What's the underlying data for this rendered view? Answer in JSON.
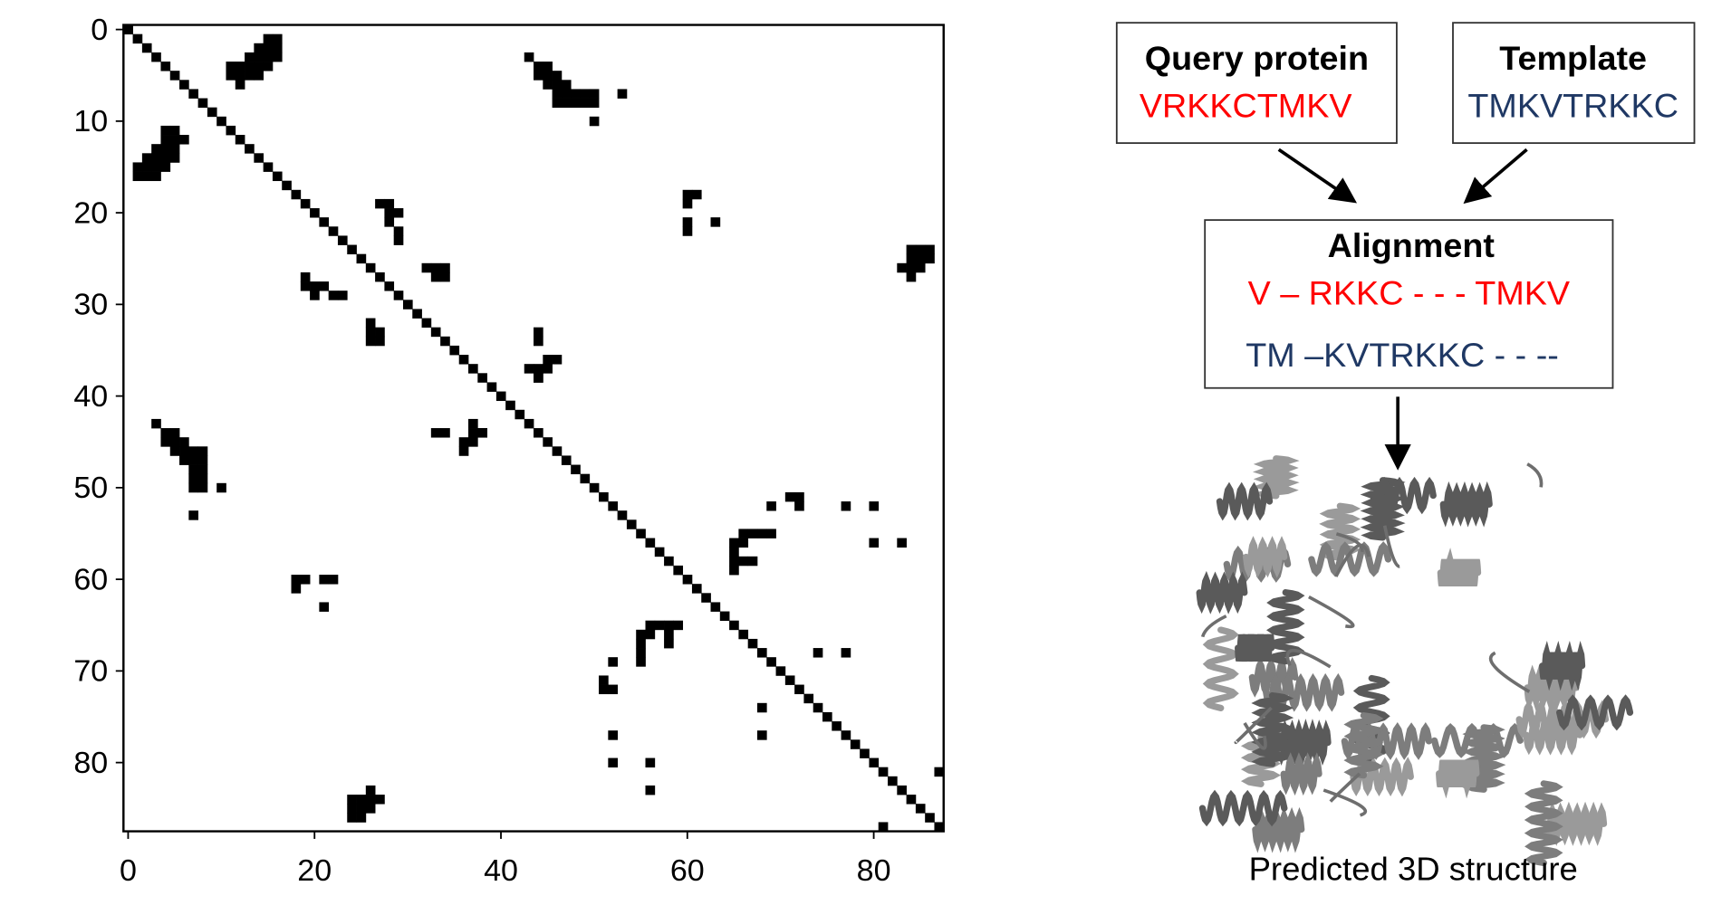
{
  "chart_data": {
    "type": "contact_map",
    "xlim": [
      -0.5,
      87.5
    ],
    "ylim": [
      87.5,
      -0.5
    ],
    "xticks": [
      0,
      20,
      40,
      60,
      80
    ],
    "yticks": [
      0,
      10,
      20,
      30,
      40,
      50,
      60,
      70,
      80
    ],
    "symmetric": true,
    "diagonal": true,
    "color": "#000000",
    "contacts": [
      [
        15,
        1
      ],
      [
        16,
        1
      ],
      [
        14,
        2
      ],
      [
        15,
        2
      ],
      [
        16,
        2
      ],
      [
        13,
        3
      ],
      [
        14,
        3
      ],
      [
        15,
        3
      ],
      [
        16,
        3
      ],
      [
        11,
        4
      ],
      [
        12,
        4
      ],
      [
        13,
        4
      ],
      [
        14,
        4
      ],
      [
        15,
        4
      ],
      [
        11,
        5
      ],
      [
        12,
        5
      ],
      [
        13,
        5
      ],
      [
        14,
        5
      ],
      [
        12,
        6
      ],
      [
        43,
        3
      ],
      [
        44,
        4
      ],
      [
        45,
        4
      ],
      [
        44,
        5
      ],
      [
        45,
        5
      ],
      [
        46,
        5
      ],
      [
        45,
        6
      ],
      [
        46,
        6
      ],
      [
        47,
        6
      ],
      [
        46,
        7
      ],
      [
        47,
        7
      ],
      [
        48,
        7
      ],
      [
        49,
        7
      ],
      [
        50,
        7
      ],
      [
        46,
        8
      ],
      [
        47,
        8
      ],
      [
        48,
        8
      ],
      [
        49,
        8
      ],
      [
        50,
        8
      ],
      [
        53,
        7
      ],
      [
        50,
        10
      ],
      [
        60,
        18
      ],
      [
        61,
        18
      ],
      [
        60,
        19
      ],
      [
        60,
        21
      ],
      [
        60,
        22
      ],
      [
        63,
        21
      ],
      [
        27,
        19
      ],
      [
        28,
        19
      ],
      [
        28,
        20
      ],
      [
        29,
        20
      ],
      [
        28,
        21
      ],
      [
        29,
        22
      ],
      [
        29,
        23
      ],
      [
        33,
        26
      ],
      [
        34,
        26
      ],
      [
        34,
        27
      ],
      [
        26,
        32
      ],
      [
        27,
        33
      ],
      [
        84,
        24
      ],
      [
        85,
        24
      ],
      [
        86,
        24
      ],
      [
        84,
        25
      ],
      [
        85,
        25
      ],
      [
        86,
        25
      ],
      [
        83,
        26
      ],
      [
        84,
        26
      ],
      [
        85,
        26
      ],
      [
        84,
        27
      ],
      [
        44,
        33
      ],
      [
        44,
        34
      ],
      [
        45,
        36
      ],
      [
        46,
        36
      ],
      [
        44,
        37
      ],
      [
        45,
        37
      ],
      [
        44,
        38
      ],
      [
        37,
        43
      ],
      [
        38,
        44
      ],
      [
        71,
        51
      ],
      [
        72,
        51
      ],
      [
        69,
        52
      ],
      [
        72,
        52
      ],
      [
        77,
        52
      ],
      [
        80,
        52
      ],
      [
        66,
        55
      ],
      [
        67,
        55
      ],
      [
        68,
        55
      ],
      [
        69,
        55
      ],
      [
        65,
        56
      ],
      [
        66,
        56
      ],
      [
        80,
        56
      ],
      [
        83,
        56
      ],
      [
        65,
        57
      ],
      [
        65,
        58
      ],
      [
        66,
        58
      ],
      [
        67,
        58
      ],
      [
        65,
        59
      ],
      [
        74,
        68
      ],
      [
        77,
        68
      ],
      [
        81,
        87
      ]
    ]
  },
  "diagram": {
    "query": {
      "title": "Query protein",
      "sequence": "VRKKCTMKV"
    },
    "template": {
      "title": "Template",
      "sequence": "TMKVTRKKC"
    },
    "alignment": {
      "title": "Alignment",
      "query_line": "V – RKKC - - - TMKV",
      "template_line": "TM –KVTRKKC - - --"
    },
    "caption": "Predicted 3D structure"
  }
}
